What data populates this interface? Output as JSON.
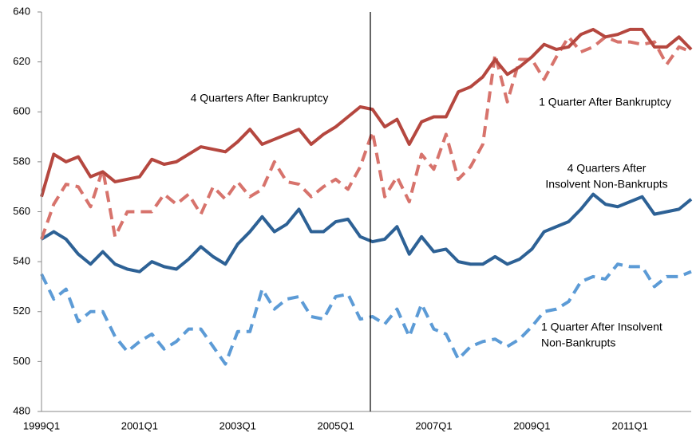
{
  "chart_data": {
    "type": "line",
    "categories": [
      "1999Q1",
      null,
      null,
      null,
      null,
      null,
      null,
      null,
      "2001Q1",
      null,
      null,
      null,
      null,
      null,
      null,
      null,
      "2003Q1",
      null,
      null,
      null,
      null,
      null,
      null,
      null,
      "2005Q1",
      null,
      null,
      null,
      null,
      null,
      null,
      null,
      "2007Q1",
      null,
      null,
      null,
      null,
      null,
      null,
      null,
      "2009Q1",
      null,
      null,
      null,
      null,
      null,
      null,
      null,
      "2011Q1",
      null,
      null,
      null,
      null,
      null
    ],
    "ylim": [
      480,
      640
    ],
    "yticks": [
      480,
      500,
      520,
      540,
      560,
      580,
      600,
      620,
      640
    ],
    "series": [
      {
        "label_lines": [
          "4 Quarters After Bankruptcy"
        ],
        "color": "#b5473f",
        "dash": false,
        "values": [
          566,
          583,
          580,
          582,
          574,
          576,
          572,
          573,
          574,
          581,
          579,
          580,
          583,
          586,
          585,
          584,
          588,
          593,
          587,
          589,
          591,
          593,
          587,
          591,
          594,
          598,
          602,
          601,
          594,
          597,
          587,
          596,
          598,
          598,
          608,
          610,
          614,
          621,
          615,
          618,
          622,
          627,
          625,
          626,
          631,
          633,
          630,
          631,
          633,
          633,
          626,
          626,
          630,
          625
        ]
      },
      {
        "label_lines": [
          "1 Quarter After Bankruptcy"
        ],
        "color": "#d7736c",
        "dash": true,
        "values": [
          549,
          563,
          571,
          570,
          562,
          577,
          550,
          560,
          560,
          560,
          567,
          563,
          567,
          559,
          570,
          565,
          572,
          566,
          569,
          580,
          572,
          571,
          566,
          570,
          573,
          569,
          578,
          592,
          566,
          574,
          564,
          583,
          577,
          591,
          573,
          578,
          587,
          623,
          604,
          621,
          621,
          613,
          622,
          630,
          624,
          626,
          630,
          628,
          628,
          627,
          628,
          619,
          626,
          624
        ]
      },
      {
        "label_lines": [
          "4 Quarters After",
          "Insolvent Non-Bankrupts"
        ],
        "color": "#2d6195",
        "dash": false,
        "values": [
          549,
          552,
          549,
          543,
          539,
          544,
          539,
          537,
          536,
          540,
          538,
          537,
          541,
          546,
          542,
          539,
          547,
          552,
          558,
          552,
          555,
          561,
          552,
          552,
          556,
          557,
          550,
          548,
          549,
          554,
          543,
          550,
          544,
          545,
          540,
          539,
          539,
          542,
          539,
          541,
          545,
          552,
          554,
          556,
          561,
          567,
          563,
          562,
          564,
          566,
          559,
          560,
          561,
          565
        ]
      },
      {
        "label_lines": [
          "1 Quarter After Insolvent",
          "Non-Bankrupts"
        ],
        "color": "#5c9bd6",
        "dash": true,
        "values": [
          535,
          525,
          529,
          516,
          520,
          520,
          510,
          504,
          508,
          511,
          505,
          508,
          513,
          513,
          506,
          499,
          512,
          512,
          529,
          521,
          525,
          526,
          518,
          517,
          526,
          527,
          517,
          518,
          515,
          521,
          510,
          523,
          513,
          511,
          501,
          506,
          508,
          509,
          506,
          509,
          514,
          520,
          521,
          524,
          532,
          534,
          533,
          539,
          538,
          538,
          530,
          534,
          534,
          536
        ]
      }
    ]
  }
}
